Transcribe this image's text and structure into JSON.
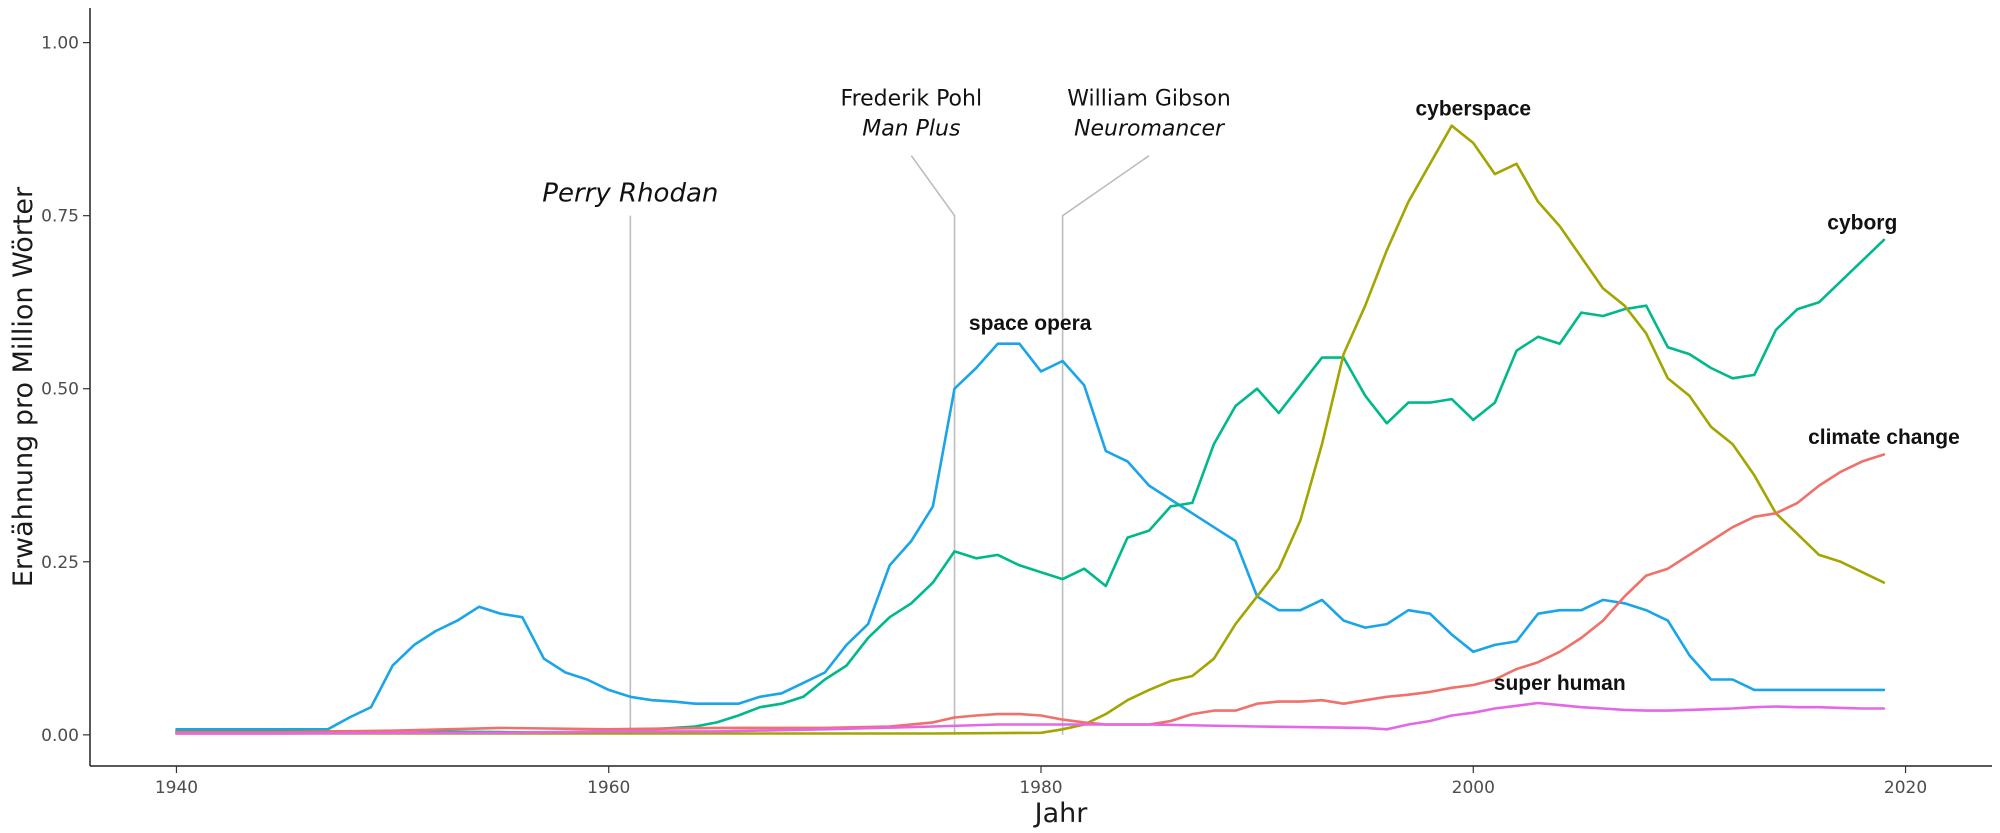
{
  "chart_data": {
    "type": "line",
    "xlabel": "Jahr",
    "ylabel": "Erwähnung pro Million Wörter",
    "xlim": [
      1936,
      2024
    ],
    "ylim": [
      -0.045,
      1.05
    ],
    "x_ticks": [
      1940,
      1960,
      1980,
      2000,
      2020
    ],
    "x_tick_labels": [
      "1940",
      "1960",
      "1980",
      "2000",
      "2020"
    ],
    "y_ticks": [
      0,
      0.25,
      0.5,
      0.75,
      1.0
    ],
    "y_tick_labels": [
      "0.00",
      "0.25",
      "0.50",
      "0.75",
      "1.00"
    ],
    "grid": false,
    "series": [
      {
        "name": "space opera",
        "color": "#1aa5e8",
        "points": [
          [
            1940,
            0.008
          ],
          [
            1941,
            0.008
          ],
          [
            1942,
            0.008
          ],
          [
            1943,
            0.008
          ],
          [
            1944,
            0.008
          ],
          [
            1945,
            0.008
          ],
          [
            1946,
            0.008
          ],
          [
            1947,
            0.008
          ],
          [
            1948,
            0.025
          ],
          [
            1949,
            0.04
          ],
          [
            1950,
            0.1
          ],
          [
            1951,
            0.13
          ],
          [
            1952,
            0.15
          ],
          [
            1953,
            0.165
          ],
          [
            1954,
            0.185
          ],
          [
            1955,
            0.175
          ],
          [
            1956,
            0.17
          ],
          [
            1957,
            0.11
          ],
          [
            1958,
            0.09
          ],
          [
            1959,
            0.08
          ],
          [
            1960,
            0.065
          ],
          [
            1961,
            0.055
          ],
          [
            1962,
            0.05
          ],
          [
            1963,
            0.048
          ],
          [
            1964,
            0.045
          ],
          [
            1965,
            0.045
          ],
          [
            1966,
            0.045
          ],
          [
            1967,
            0.055
          ],
          [
            1968,
            0.06
          ],
          [
            1969,
            0.075
          ],
          [
            1970,
            0.09
          ],
          [
            1971,
            0.13
          ],
          [
            1972,
            0.16
          ],
          [
            1973,
            0.245
          ],
          [
            1974,
            0.28
          ],
          [
            1975,
            0.33
          ],
          [
            1976,
            0.5
          ],
          [
            1977,
            0.53
          ],
          [
            1978,
            0.565
          ],
          [
            1979,
            0.565
          ],
          [
            1980,
            0.525
          ],
          [
            1981,
            0.54
          ],
          [
            1982,
            0.505
          ],
          [
            1983,
            0.41
          ],
          [
            1984,
            0.395
          ],
          [
            1985,
            0.36
          ],
          [
            1986,
            0.34
          ],
          [
            1987,
            0.32
          ],
          [
            1988,
            0.3
          ],
          [
            1989,
            0.28
          ],
          [
            1990,
            0.2
          ],
          [
            1991,
            0.18
          ],
          [
            1992,
            0.18
          ],
          [
            1993,
            0.195
          ],
          [
            1994,
            0.165
          ],
          [
            1995,
            0.155
          ],
          [
            1996,
            0.16
          ],
          [
            1997,
            0.18
          ],
          [
            1998,
            0.175
          ],
          [
            1999,
            0.145
          ],
          [
            2000,
            0.12
          ],
          [
            2001,
            0.13
          ],
          [
            2002,
            0.135
          ],
          [
            2003,
            0.175
          ],
          [
            2004,
            0.18
          ],
          [
            2005,
            0.18
          ],
          [
            2006,
            0.195
          ],
          [
            2007,
            0.19
          ],
          [
            2008,
            0.18
          ],
          [
            2009,
            0.165
          ],
          [
            2010,
            0.115
          ],
          [
            2011,
            0.08
          ],
          [
            2012,
            0.08
          ],
          [
            2013,
            0.065
          ],
          [
            2014,
            0.065
          ],
          [
            2015,
            0.065
          ],
          [
            2016,
            0.065
          ],
          [
            2017,
            0.065
          ],
          [
            2018,
            0.065
          ],
          [
            2019,
            0.065
          ]
        ]
      },
      {
        "name": "cyborg",
        "color": "#00b98a",
        "points": [
          [
            1940,
            0.005
          ],
          [
            1945,
            0.005
          ],
          [
            1950,
            0.005
          ],
          [
            1955,
            0.004
          ],
          [
            1958,
            0.003
          ],
          [
            1960,
            0.004
          ],
          [
            1962,
            0.008
          ],
          [
            1964,
            0.012
          ],
          [
            1965,
            0.018
          ],
          [
            1966,
            0.028
          ],
          [
            1967,
            0.04
          ],
          [
            1968,
            0.045
          ],
          [
            1969,
            0.055
          ],
          [
            1970,
            0.08
          ],
          [
            1971,
            0.1
          ],
          [
            1972,
            0.14
          ],
          [
            1973,
            0.17
          ],
          [
            1974,
            0.19
          ],
          [
            1975,
            0.22
          ],
          [
            1976,
            0.265
          ],
          [
            1977,
            0.255
          ],
          [
            1978,
            0.26
          ],
          [
            1979,
            0.245
          ],
          [
            1980,
            0.235
          ],
          [
            1981,
            0.225
          ],
          [
            1982,
            0.24
          ],
          [
            1983,
            0.215
          ],
          [
            1984,
            0.285
          ],
          [
            1985,
            0.295
          ],
          [
            1986,
            0.33
          ],
          [
            1987,
            0.335
          ],
          [
            1988,
            0.42
          ],
          [
            1989,
            0.475
          ],
          [
            1990,
            0.5
          ],
          [
            1991,
            0.465
          ],
          [
            1992,
            0.505
          ],
          [
            1993,
            0.545
          ],
          [
            1994,
            0.545
          ],
          [
            1995,
            0.49
          ],
          [
            1996,
            0.45
          ],
          [
            1997,
            0.48
          ],
          [
            1998,
            0.48
          ],
          [
            1999,
            0.485
          ],
          [
            2000,
            0.455
          ],
          [
            2001,
            0.48
          ],
          [
            2002,
            0.555
          ],
          [
            2003,
            0.575
          ],
          [
            2004,
            0.565
          ],
          [
            2005,
            0.61
          ],
          [
            2006,
            0.605
          ],
          [
            2007,
            0.615
          ],
          [
            2008,
            0.62
          ],
          [
            2009,
            0.56
          ],
          [
            2010,
            0.55
          ],
          [
            2011,
            0.53
          ],
          [
            2012,
            0.515
          ],
          [
            2013,
            0.52
          ],
          [
            2014,
            0.585
          ],
          [
            2015,
            0.615
          ],
          [
            2016,
            0.625
          ],
          [
            2017,
            0.655
          ],
          [
            2018,
            0.685
          ],
          [
            2019,
            0.715
          ]
        ]
      },
      {
        "name": "cyberspace",
        "color": "#a3a500",
        "points": [
          [
            1940,
            0.002
          ],
          [
            1950,
            0.002
          ],
          [
            1960,
            0.002
          ],
          [
            1970,
            0.002
          ],
          [
            1975,
            0.002
          ],
          [
            1980,
            0.003
          ],
          [
            1981,
            0.008
          ],
          [
            1982,
            0.015
          ],
          [
            1983,
            0.03
          ],
          [
            1984,
            0.05
          ],
          [
            1985,
            0.065
          ],
          [
            1986,
            0.078
          ],
          [
            1987,
            0.085
          ],
          [
            1988,
            0.11
          ],
          [
            1989,
            0.16
          ],
          [
            1990,
            0.2
          ],
          [
            1991,
            0.24
          ],
          [
            1992,
            0.31
          ],
          [
            1993,
            0.42
          ],
          [
            1994,
            0.55
          ],
          [
            1995,
            0.62
          ],
          [
            1996,
            0.7
          ],
          [
            1997,
            0.77
          ],
          [
            1998,
            0.825
          ],
          [
            1999,
            0.88
          ],
          [
            2000,
            0.855
          ],
          [
            2001,
            0.81
          ],
          [
            2002,
            0.825
          ],
          [
            2003,
            0.77
          ],
          [
            2004,
            0.735
          ],
          [
            2005,
            0.69
          ],
          [
            2006,
            0.645
          ],
          [
            2007,
            0.62
          ],
          [
            2008,
            0.58
          ],
          [
            2009,
            0.515
          ],
          [
            2010,
            0.49
          ],
          [
            2011,
            0.445
          ],
          [
            2012,
            0.42
          ],
          [
            2013,
            0.375
          ],
          [
            2014,
            0.32
          ],
          [
            2015,
            0.29
          ],
          [
            2016,
            0.26
          ],
          [
            2017,
            0.25
          ],
          [
            2018,
            0.235
          ],
          [
            2019,
            0.22
          ]
        ]
      },
      {
        "name": "climate change",
        "color": "#f0706a",
        "points": [
          [
            1940,
            0.004
          ],
          [
            1945,
            0.004
          ],
          [
            1950,
            0.006
          ],
          [
            1955,
            0.01
          ],
          [
            1960,
            0.008
          ],
          [
            1965,
            0.01
          ],
          [
            1970,
            0.01
          ],
          [
            1973,
            0.012
          ],
          [
            1975,
            0.018
          ],
          [
            1976,
            0.025
          ],
          [
            1977,
            0.028
          ],
          [
            1978,
            0.03
          ],
          [
            1979,
            0.03
          ],
          [
            1980,
            0.028
          ],
          [
            1981,
            0.022
          ],
          [
            1982,
            0.018
          ],
          [
            1983,
            0.015
          ],
          [
            1985,
            0.015
          ],
          [
            1986,
            0.02
          ],
          [
            1987,
            0.03
          ],
          [
            1988,
            0.035
          ],
          [
            1989,
            0.035
          ],
          [
            1990,
            0.045
          ],
          [
            1991,
            0.048
          ],
          [
            1992,
            0.048
          ],
          [
            1993,
            0.05
          ],
          [
            1994,
            0.045
          ],
          [
            1995,
            0.05
          ],
          [
            1996,
            0.055
          ],
          [
            1997,
            0.058
          ],
          [
            1998,
            0.062
          ],
          [
            1999,
            0.068
          ],
          [
            2000,
            0.072
          ],
          [
            2001,
            0.08
          ],
          [
            2002,
            0.095
          ],
          [
            2003,
            0.105
          ],
          [
            2004,
            0.12
          ],
          [
            2005,
            0.14
          ],
          [
            2006,
            0.165
          ],
          [
            2007,
            0.2
          ],
          [
            2008,
            0.23
          ],
          [
            2009,
            0.24
          ],
          [
            2010,
            0.26
          ],
          [
            2011,
            0.28
          ],
          [
            2012,
            0.3
          ],
          [
            2013,
            0.315
          ],
          [
            2014,
            0.32
          ],
          [
            2015,
            0.335
          ],
          [
            2016,
            0.36
          ],
          [
            2017,
            0.38
          ],
          [
            2018,
            0.395
          ],
          [
            2019,
            0.405
          ]
        ]
      },
      {
        "name": "super human",
        "color": "#e567e5",
        "points": [
          [
            1940,
            0.002
          ],
          [
            1945,
            0.002
          ],
          [
            1950,
            0.003
          ],
          [
            1955,
            0.003
          ],
          [
            1960,
            0.005
          ],
          [
            1965,
            0.005
          ],
          [
            1970,
            0.008
          ],
          [
            1975,
            0.012
          ],
          [
            1978,
            0.015
          ],
          [
            1980,
            0.015
          ],
          [
            1985,
            0.015
          ],
          [
            1990,
            0.012
          ],
          [
            1995,
            0.01
          ],
          [
            1996,
            0.008
          ],
          [
            1997,
            0.015
          ],
          [
            1998,
            0.02
          ],
          [
            1999,
            0.028
          ],
          [
            2000,
            0.032
          ],
          [
            2001,
            0.038
          ],
          [
            2002,
            0.042
          ],
          [
            2003,
            0.046
          ],
          [
            2004,
            0.043
          ],
          [
            2005,
            0.04
          ],
          [
            2006,
            0.038
          ],
          [
            2007,
            0.036
          ],
          [
            2008,
            0.035
          ],
          [
            2009,
            0.035
          ],
          [
            2010,
            0.036
          ],
          [
            2011,
            0.037
          ],
          [
            2012,
            0.038
          ],
          [
            2013,
            0.04
          ],
          [
            2014,
            0.041
          ],
          [
            2015,
            0.04
          ],
          [
            2016,
            0.04
          ],
          [
            2017,
            0.039
          ],
          [
            2018,
            0.038
          ],
          [
            2019,
            0.038
          ]
        ]
      }
    ],
    "series_labels": [
      {
        "text": "space opera",
        "x": 1979.5,
        "y": 0.585
      },
      {
        "text": "cyborg",
        "x": 2018,
        "y": 0.73
      },
      {
        "text": "cyberspace",
        "x": 2000,
        "y": 0.895
      },
      {
        "text": "climate change",
        "x": 2019,
        "y": 0.42
      },
      {
        "text": "super human",
        "x": 2004,
        "y": 0.065
      }
    ],
    "annotations": [
      {
        "author": "",
        "title": "Perry Rhodan",
        "year": 1961,
        "label_x": 1961,
        "y_top": 0.75
      },
      {
        "author": "Frederik Pohl",
        "title": "Man Plus",
        "year": 1976,
        "label_x": 1974,
        "y_top": 0.75
      },
      {
        "author": "William Gibson",
        "title": "Neuromancer",
        "year": 1981,
        "label_x": 1985,
        "y_top": 0.75
      }
    ]
  }
}
